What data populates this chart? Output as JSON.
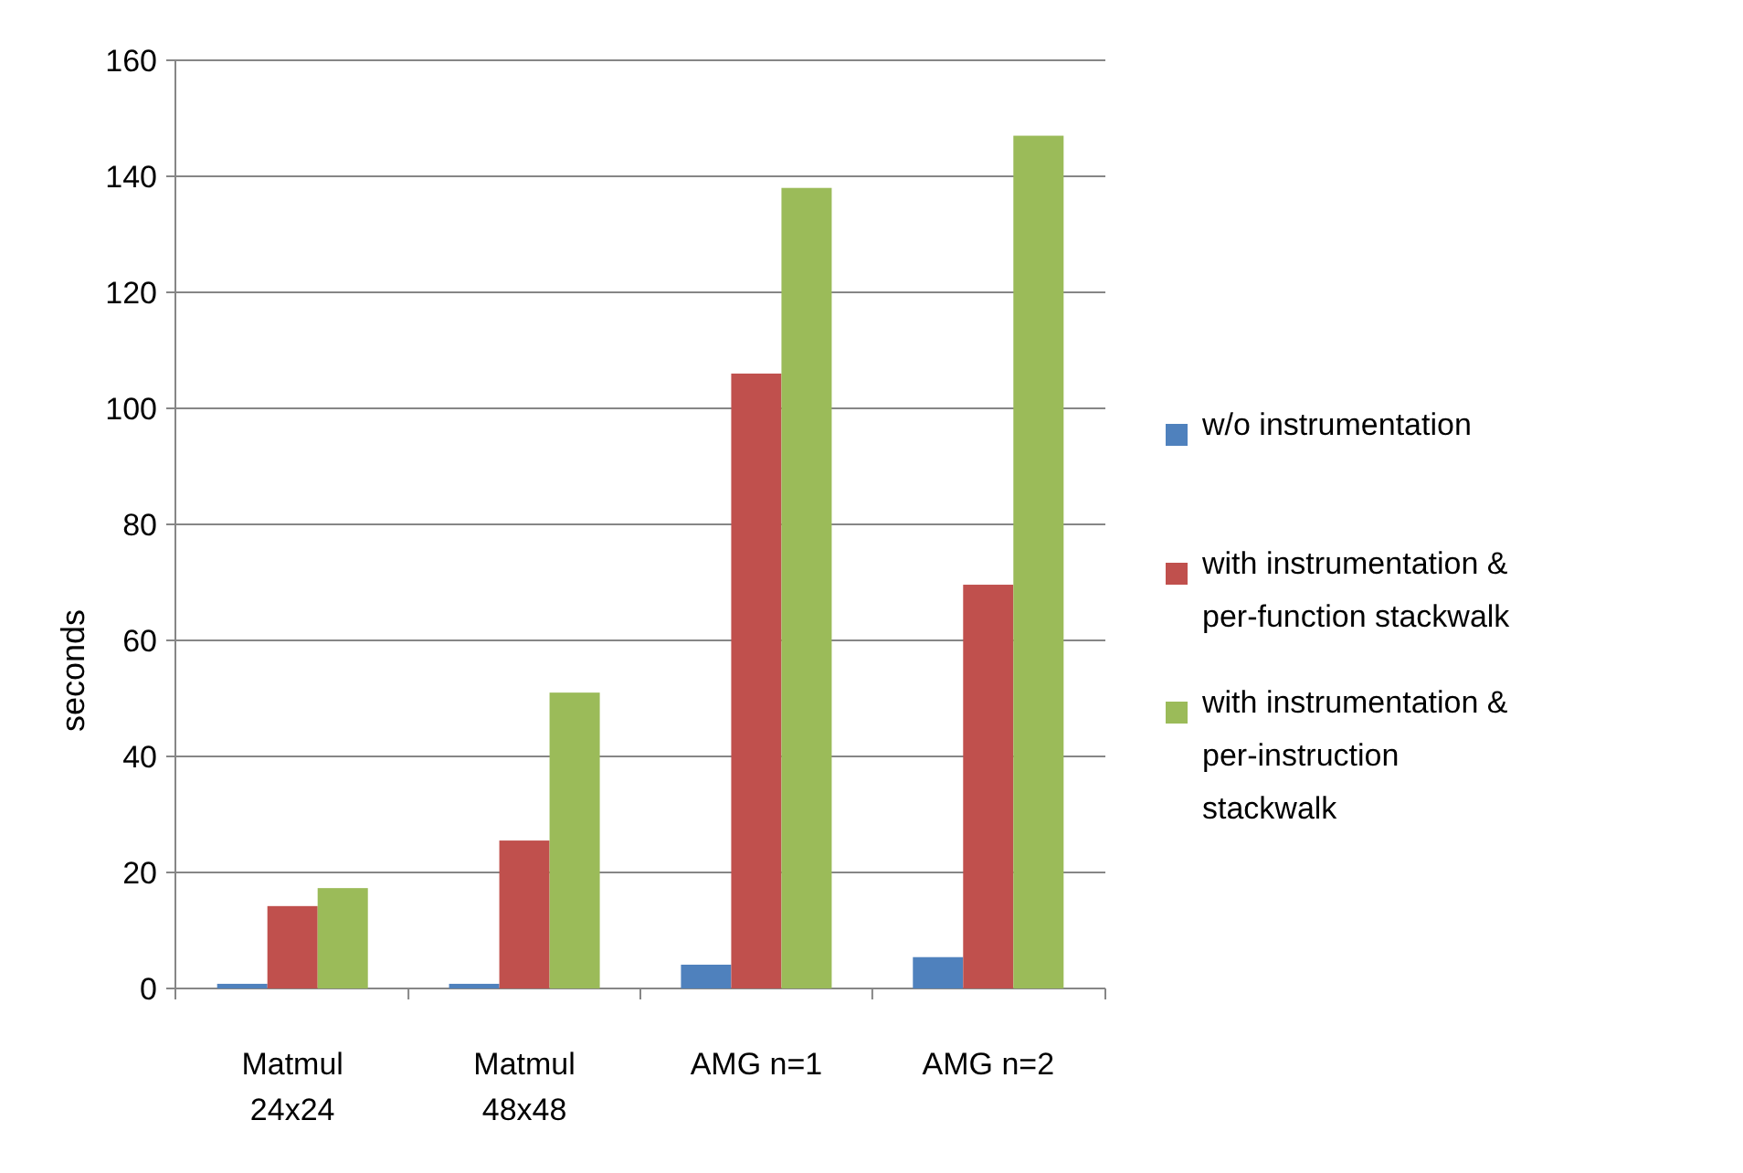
{
  "chart_data": {
    "type": "bar",
    "ylabel": "seconds",
    "categories": [
      "Matmul 24x24",
      "Matmul 48x48",
      "AMG n=1",
      "AMG n=2"
    ],
    "series": [
      {
        "name": "w/o instrumentation",
        "color": "#4f81bd",
        "values": [
          0.8,
          0.8,
          4.1,
          5.4
        ]
      },
      {
        "name": "with instrumentation & per-function stackwalk",
        "color": "#c0504d",
        "values": [
          14.2,
          25.5,
          106,
          69.6
        ]
      },
      {
        "name": "with instrumentation & per-instruction stackwalk",
        "color": "#9bbb59",
        "values": [
          17.3,
          51,
          138,
          147
        ]
      }
    ],
    "ylim": [
      0,
      160
    ],
    "yticks": [
      0,
      20,
      40,
      60,
      80,
      100,
      120,
      140,
      160
    ],
    "grid": "y",
    "legend": "right"
  }
}
